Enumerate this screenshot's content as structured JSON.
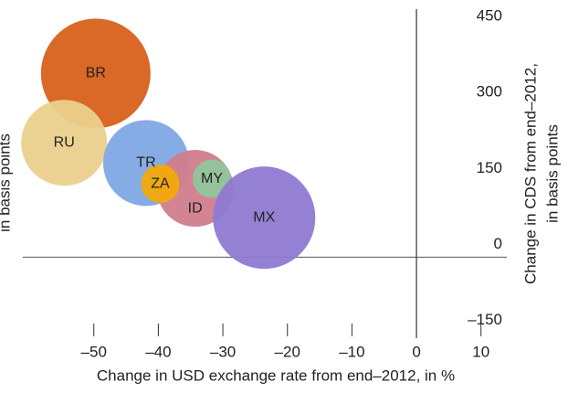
{
  "chart_data": {
    "type": "bubble",
    "xlabel": "Change in USD exchange rate from end–2012, in %",
    "ylabel": [
      "Change in CDS from end–2012,",
      "in basis points"
    ],
    "left_label": "in basis points",
    "xlim": [
      -61,
      14
    ],
    "xticks": [
      {
        "value": -50,
        "label": "–50"
      },
      {
        "value": -40,
        "label": "–40"
      },
      {
        "value": -30,
        "label": "–30"
      },
      {
        "value": -20,
        "label": "–20"
      },
      {
        "value": -10,
        "label": "–10"
      },
      0,
      10
    ],
    "ylim": [
      -160,
      490
    ],
    "yticks": [
      {
        "value": -150,
        "label": "–150"
      },
      0,
      150,
      300,
      450
    ],
    "points": [
      {
        "label": "BR",
        "x": -49.7,
        "y": 363,
        "size": 60,
        "color": "#d8601a"
      },
      {
        "label": "RU",
        "x": -54.6,
        "y": 226,
        "size": 47,
        "color": "#ead08c"
      },
      {
        "label": "TR",
        "x": -41.9,
        "y": 186,
        "size": 47,
        "color": "#80a8e4"
      },
      {
        "label": "ID",
        "x": -34.3,
        "y": 136,
        "size": 42,
        "color": "#d07d8d"
      },
      {
        "label": "ZA",
        "x": -39.7,
        "y": 145,
        "size": 21,
        "color": "#f2aa0a"
      },
      {
        "label": "MY",
        "x": -31.7,
        "y": 155,
        "size": 21,
        "color": "#90c59c"
      },
      {
        "label": "MX",
        "x": -23.6,
        "y": 78,
        "size": 56,
        "color": "#8e7ad2"
      }
    ]
  }
}
